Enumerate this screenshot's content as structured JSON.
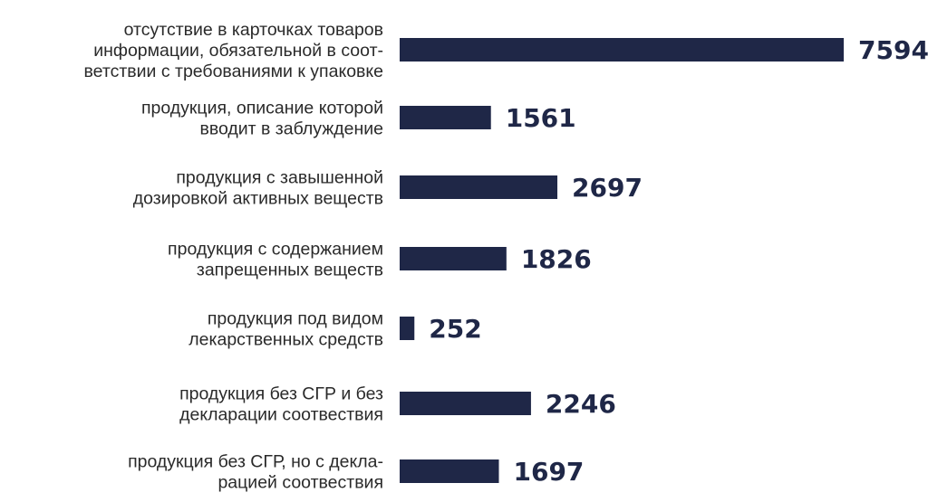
{
  "colors": {
    "bar": "#1f2747",
    "value_text": "#1f2747",
    "label_text": "#2a2a2a",
    "background": "#ffffff"
  },
  "chart_data": {
    "type": "bar",
    "orientation": "horizontal",
    "title": "",
    "xlabel": "",
    "ylabel": "",
    "grid": false,
    "legend": "none",
    "xlim": [
      0,
      7594
    ],
    "categories": [
      "отсутствие в карточках товаров информации, обязательной в соответствии с требованиями к упаковке",
      "продукция, описание которой вводит в заблуждение",
      "продукция с завышенной дозировкой активных веществ",
      "продукция с содержанием запрещенных веществ",
      "продукция под видом лекарственных средств",
      "продукция без СГР и без декларации соотвествия",
      "продукция без СГР, но с декларацией соотвествия"
    ],
    "category_lines": [
      [
        "отсутствие в карточках товаров",
        "информации, обязательной в соот-",
        "ветствии с требованиями к упаковке"
      ],
      [
        "продукция, описание которой",
        "вводит в заблуждение"
      ],
      [
        "продукция с завышенной",
        "дозировкой активных веществ"
      ],
      [
        "продукция с содержанием",
        "запрещенных веществ"
      ],
      [
        "продукция под видом",
        "лекарственных средств"
      ],
      [
        "продукция без СГР и без",
        "декларации соотвествия"
      ],
      [
        "продукция без СГР, но с декла-",
        "рацией соотвествия"
      ]
    ],
    "values": [
      7594,
      1561,
      2697,
      1826,
      252,
      2246,
      1697
    ],
    "value_labels": [
      "7594",
      "1561",
      "2697",
      "1826",
      "252",
      "2246",
      "1697"
    ]
  }
}
